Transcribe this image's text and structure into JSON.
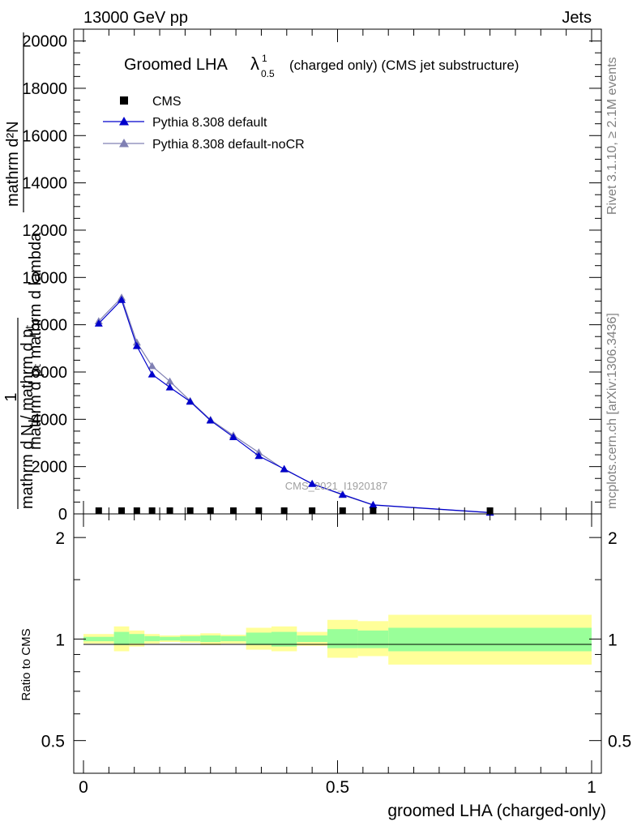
{
  "header": {
    "left": "13000 GeV pp",
    "right": "Jets"
  },
  "side_labels": {
    "rivet": "Rivet 3.1.10, ≥ 2.1M events",
    "mcplots": "mcplots.cern.ch [arXiv:1306.3436]"
  },
  "main_panel": {
    "title_prefix": "Groomed LHA",
    "title_symbol": "λ",
    "title_sup": "1",
    "title_sub": "0.5",
    "title_suffix": "(charged only) (CMS jet substructure)",
    "ylabel_top": "mathrm d²N",
    "ylabel_mid": "mathrm d pₜ mathrm d lambda",
    "ylabel_one": "1",
    "ylabel_bottom": "mathrm d N / mathrm d pₜ",
    "watermark": "CMS_2021_I1920187"
  },
  "ratio_panel": {
    "ylabel": "Ratio to CMS",
    "xlabel": "groomed LHA (charged-only)"
  },
  "colors": {
    "cms": "#000000",
    "default": "#0000cc",
    "nocr": "#8080b3",
    "band_outer": "#ffff99",
    "band_inner": "#99ff99"
  },
  "chart_data": [
    {
      "type": "line",
      "title": "Groomed LHA λ^1_0.5 (charged only) (CMS jet substructure)",
      "xlabel": "",
      "ylabel": "1 / mathrm d N / mathrm d p_T · mathrm d²N / mathrm d p_T mathrm d lambda",
      "xlim": [
        0,
        1
      ],
      "ylim": [
        0,
        20500
      ],
      "yticks": [
        0,
        2000,
        4000,
        6000,
        8000,
        10000,
        12000,
        14000,
        16000,
        18000,
        20000
      ],
      "ytick_labels": [
        "0",
        "2000",
        "4000",
        "6000",
        "8000",
        "10000",
        "12000",
        "14000",
        "16000",
        "18000",
        "20000"
      ],
      "legend_position": "top-left",
      "series": [
        {
          "name": "CMS",
          "marker": "square",
          "x": [
            0.03,
            0.075,
            0.105,
            0.135,
            0.17,
            0.21,
            0.25,
            0.295,
            0.345,
            0.395,
            0.45,
            0.51,
            0.57,
            0.8
          ],
          "y": [
            30,
            30,
            30,
            30,
            30,
            30,
            30,
            30,
            30,
            30,
            30,
            30,
            30,
            30
          ]
        },
        {
          "name": "Pythia 8.308 default",
          "marker": "triangle",
          "x": [
            0.03,
            0.075,
            0.105,
            0.135,
            0.17,
            0.21,
            0.25,
            0.295,
            0.345,
            0.395,
            0.45,
            0.51,
            0.57,
            0.8
          ],
          "y": [
            8050,
            9050,
            7100,
            5900,
            5350,
            4750,
            3950,
            3250,
            2450,
            1900,
            1270,
            820,
            380,
            55
          ]
        },
        {
          "name": "Pythia 8.308 default-noCR",
          "marker": "triangle",
          "x": [
            0.03,
            0.075,
            0.105,
            0.135,
            0.17,
            0.21,
            0.25,
            0.295,
            0.345,
            0.395,
            0.45,
            0.51,
            0.57,
            0.8
          ],
          "y": [
            8150,
            9150,
            7250,
            6250,
            5600,
            4780,
            3980,
            3320,
            2600,
            1880,
            1280,
            800,
            370,
            50
          ]
        }
      ]
    },
    {
      "type": "area",
      "title": "",
      "xlabel": "groomed LHA (charged-only)",
      "ylabel": "Ratio to CMS",
      "xlim": [
        0,
        1
      ],
      "ylim": [
        0.4,
        2.35
      ],
      "log_y": true,
      "xticks": [
        0,
        0.5,
        1
      ],
      "xtick_labels": [
        "0",
        "0.5",
        "1"
      ],
      "yticks": [
        0.5,
        1,
        2
      ],
      "ytick_labels": [
        "0.5",
        "1",
        "2"
      ],
      "bins": [
        {
          "lo": 0.0,
          "hi": 0.06,
          "inner": [
            0.985,
            1.015
          ],
          "outer": [
            0.97,
            1.035
          ]
        },
        {
          "lo": 0.06,
          "hi": 0.09,
          "inner": [
            0.96,
            1.05
          ],
          "outer": [
            0.92,
            1.09
          ]
        },
        {
          "lo": 0.09,
          "hi": 0.12,
          "inner": [
            0.97,
            1.035
          ],
          "outer": [
            0.95,
            1.06
          ]
        },
        {
          "lo": 0.12,
          "hi": 0.15,
          "inner": [
            0.985,
            1.02
          ],
          "outer": [
            0.97,
            1.035
          ]
        },
        {
          "lo": 0.15,
          "hi": 0.19,
          "inner": [
            0.99,
            1.015
          ],
          "outer": [
            0.98,
            1.025
          ]
        },
        {
          "lo": 0.19,
          "hi": 0.23,
          "inner": [
            0.985,
            1.02
          ],
          "outer": [
            0.975,
            1.03
          ]
        },
        {
          "lo": 0.23,
          "hi": 0.27,
          "inner": [
            0.98,
            1.025
          ],
          "outer": [
            0.96,
            1.04
          ]
        },
        {
          "lo": 0.27,
          "hi": 0.32,
          "inner": [
            0.985,
            1.02
          ],
          "outer": [
            0.97,
            1.03
          ]
        },
        {
          "lo": 0.32,
          "hi": 0.37,
          "inner": [
            0.96,
            1.045
          ],
          "outer": [
            0.93,
            1.08
          ]
        },
        {
          "lo": 0.37,
          "hi": 0.42,
          "inner": [
            0.95,
            1.05
          ],
          "outer": [
            0.92,
            1.09
          ]
        },
        {
          "lo": 0.42,
          "hi": 0.48,
          "inner": [
            0.98,
            1.025
          ],
          "outer": [
            0.955,
            1.05
          ]
        },
        {
          "lo": 0.48,
          "hi": 0.54,
          "inner": [
            0.94,
            1.07
          ],
          "outer": [
            0.88,
            1.14
          ]
        },
        {
          "lo": 0.54,
          "hi": 0.6,
          "inner": [
            0.94,
            1.06
          ],
          "outer": [
            0.89,
            1.13
          ]
        },
        {
          "lo": 0.6,
          "hi": 1.0,
          "inner": [
            0.92,
            1.08
          ],
          "outer": [
            0.84,
            1.18
          ]
        }
      ]
    }
  ]
}
